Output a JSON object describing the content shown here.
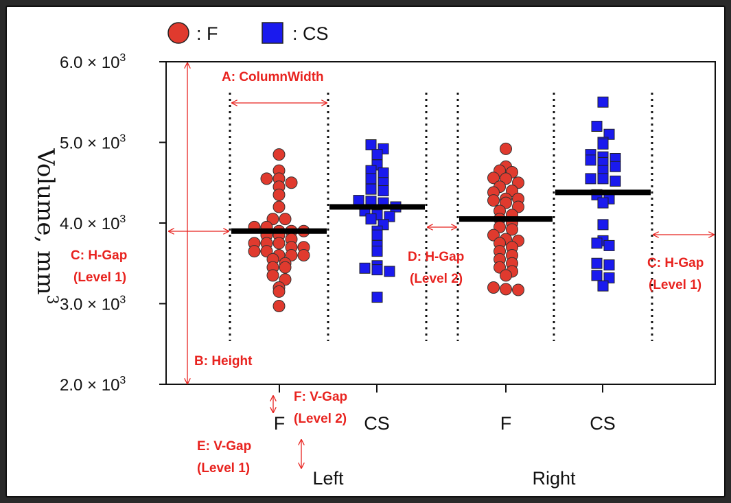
{
  "chart_data": {
    "type": "scatter",
    "ylabel": "Volume, mm",
    "ylabel_superscript": "3",
    "ylim": [
      2000,
      6000
    ],
    "yticks": [
      {
        "value": 2000,
        "label": "2.0 × 10",
        "exp": "3"
      },
      {
        "value": 3000,
        "label": "3.0 × 10",
        "exp": "3"
      },
      {
        "value": 4000,
        "label": "4.0 × 10",
        "exp": "3"
      },
      {
        "value": 5000,
        "label": "5.0 × 10",
        "exp": "3"
      },
      {
        "value": 6000,
        "label": "6.0 × 10",
        "exp": "3"
      }
    ],
    "legend": [
      {
        "marker": "circle",
        "label": ": F",
        "color": "#e03a2e"
      },
      {
        "marker": "square",
        "label": ": CS",
        "color": "#1a1aee"
      }
    ],
    "groups": [
      {
        "label": "Left",
        "categories": [
          "F",
          "CS"
        ]
      },
      {
        "label": "Right",
        "categories": [
          "F",
          "CS"
        ]
      }
    ],
    "series": [
      {
        "group": "Left",
        "category": "F",
        "marker": "circle",
        "color": "#e03a2e",
        "mean": 3900,
        "values": [
          4850,
          4650,
          4550,
          4550,
          4500,
          4450,
          4350,
          4200,
          4050,
          4050,
          3950,
          3950,
          3900,
          3900,
          3900,
          3850,
          3850,
          3800,
          3750,
          3750,
          3750,
          3700,
          3700,
          3650,
          3650,
          3600,
          3600,
          3600,
          3550,
          3500,
          3450,
          3450,
          3350,
          3300,
          3200,
          3150,
          2970
        ]
      },
      {
        "group": "Left",
        "category": "CS",
        "marker": "square",
        "color": "#1a1aee",
        "mean": 4200,
        "values": [
          4970,
          4920,
          4850,
          4720,
          4650,
          4620,
          4550,
          4500,
          4420,
          4400,
          4280,
          4270,
          4250,
          4200,
          4150,
          4100,
          4080,
          4050,
          3980,
          3900,
          3850,
          3720,
          3650,
          3470,
          3440,
          3420,
          3400,
          3080
        ]
      },
      {
        "group": "Right",
        "category": "F",
        "marker": "circle",
        "color": "#e03a2e",
        "mean": 4050,
        "values": [
          4920,
          4700,
          4650,
          4630,
          4560,
          4550,
          4500,
          4450,
          4400,
          4380,
          4300,
          4300,
          4280,
          4250,
          4200,
          4150,
          4100,
          4050,
          4000,
          3950,
          3920,
          3850,
          3800,
          3780,
          3750,
          3700,
          3650,
          3600,
          3550,
          3500,
          3450,
          3400,
          3350,
          3200,
          3180,
          3170
        ]
      },
      {
        "group": "Right",
        "category": "CS",
        "marker": "square",
        "color": "#1a1aee",
        "mean": 4380,
        "values": [
          5500,
          5200,
          5100,
          5000,
          4980,
          4850,
          4820,
          4800,
          4780,
          4750,
          4700,
          4650,
          4550,
          4550,
          4520,
          4350,
          4300,
          4250,
          3980,
          3780,
          3750,
          3720,
          3500,
          3480,
          3350,
          3320,
          3220
        ]
      }
    ]
  },
  "annotations": {
    "column_width": "A: ColumnWidth",
    "height": "B: Height",
    "h_gap_level1_left_line1": "C: H-Gap",
    "h_gap_level1_left_line2": "(Level 1)",
    "h_gap_level2_line1": "D: H-Gap",
    "h_gap_level2_line2": "(Level 2)",
    "h_gap_level1_right_line1": "C: H-Gap",
    "h_gap_level1_right_line2": "(Level 1)",
    "v_gap_level1_line1": "E: V-Gap",
    "v_gap_level1_line2": "(Level 1)",
    "v_gap_level2_line1": "F: V-Gap",
    "v_gap_level2_line2": "(Level 2)"
  },
  "colors": {
    "annotation": "#e8231f",
    "female": "#e03a2e",
    "cs": "#1a1aee",
    "mean_bar": "#000000"
  }
}
